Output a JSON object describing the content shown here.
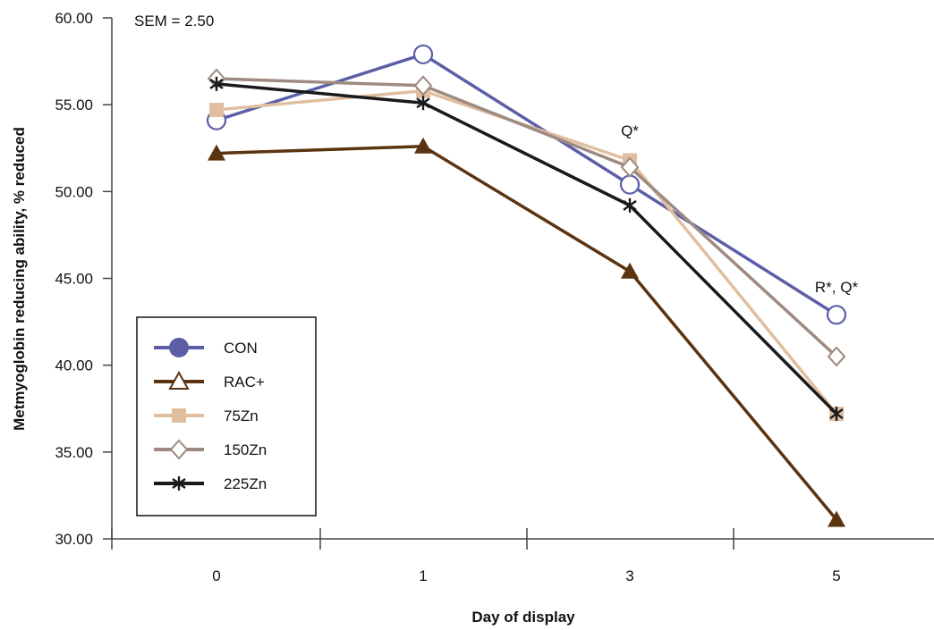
{
  "chart_data": {
    "type": "line",
    "title": "",
    "xlabel": "Day of display",
    "ylabel": "Metmyoglobin reducing ability, % reduced",
    "categories": [
      "0",
      "1",
      "3",
      "5"
    ],
    "ylim": [
      30,
      60
    ],
    "yticks": [
      "30.00",
      "35.00",
      "40.00",
      "45.00",
      "50.00",
      "55.00",
      "60.00"
    ],
    "grid": false,
    "legend_position": "bottom-left",
    "series": [
      {
        "name": "CON",
        "values": [
          54.1,
          57.9,
          50.4,
          42.9
        ],
        "color": "#5b5ea6",
        "marker": "circle-open"
      },
      {
        "name": "RAC+",
        "values": [
          52.2,
          52.6,
          45.4,
          31.1
        ],
        "color": "#5c3310",
        "marker": "triangle-filled"
      },
      {
        "name": "75Zn",
        "values": [
          54.7,
          55.8,
          51.8,
          37.2
        ],
        "color": "#e0bfa0",
        "marker": "square-filled"
      },
      {
        "name": "150Zn",
        "values": [
          56.5,
          56.1,
          51.4,
          40.5
        ],
        "color": "#9e8a80",
        "marker": "diamond-open"
      },
      {
        "name": "225Zn",
        "values": [
          56.2,
          55.1,
          49.2,
          37.2
        ],
        "color": "#1a1a1a",
        "marker": "asterisk"
      }
    ],
    "annotations": [
      {
        "text": "SEM = 2.50"
      },
      {
        "text": "Q*",
        "category": "3",
        "y": 53.2
      },
      {
        "text": "R*, Q*",
        "category": "5",
        "y": 44.2
      }
    ]
  }
}
